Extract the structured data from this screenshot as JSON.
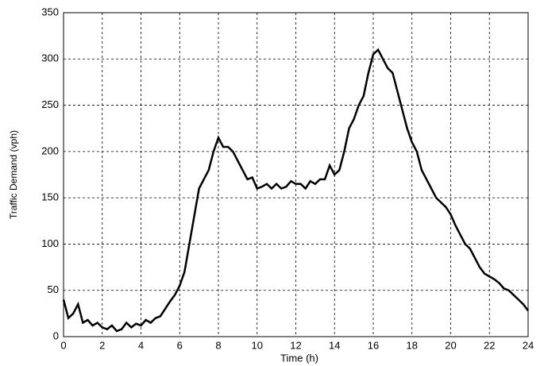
{
  "chart_data": {
    "type": "line",
    "xlabel": "Time (h)",
    "ylabel": "Traffic Demand (vph)",
    "x": [
      0,
      0.25,
      0.5,
      0.75,
      1,
      1.25,
      1.5,
      1.75,
      2,
      2.25,
      2.5,
      2.75,
      3,
      3.25,
      3.5,
      3.75,
      4,
      4.25,
      4.5,
      4.75,
      5,
      5.25,
      5.5,
      5.75,
      6,
      6.25,
      6.5,
      6.75,
      7,
      7.25,
      7.5,
      7.75,
      8,
      8.25,
      8.5,
      8.75,
      9,
      9.25,
      9.5,
      9.75,
      10,
      10.25,
      10.5,
      10.75,
      11,
      11.25,
      11.5,
      11.75,
      12,
      12.25,
      12.5,
      12.75,
      13,
      13.25,
      13.5,
      13.75,
      14,
      14.25,
      14.5,
      14.75,
      15,
      15.25,
      15.5,
      15.75,
      16,
      16.25,
      16.5,
      16.75,
      17,
      17.25,
      17.5,
      17.75,
      18,
      18.25,
      18.5,
      18.75,
      19,
      19.25,
      19.5,
      19.75,
      20,
      20.25,
      20.5,
      20.75,
      21,
      21.25,
      21.5,
      21.75,
      22,
      22.25,
      22.5,
      22.75,
      23,
      23.25,
      23.5,
      23.75,
      24
    ],
    "series": [
      {
        "color": "#000000",
        "values": [
          40,
          20,
          25,
          35,
          15,
          18,
          12,
          15,
          10,
          8,
          12,
          6,
          8,
          15,
          10,
          14,
          12,
          18,
          15,
          20,
          22,
          30,
          38,
          45,
          55,
          70,
          100,
          130,
          160,
          170,
          180,
          200,
          215,
          205,
          205,
          200,
          190,
          180,
          170,
          172,
          160,
          162,
          165,
          160,
          165,
          160,
          162,
          168,
          165,
          165,
          160,
          168,
          165,
          170,
          170,
          185,
          175,
          180,
          200,
          225,
          235,
          250,
          260,
          285,
          305,
          310,
          300,
          290,
          285,
          265,
          245,
          225,
          210,
          200,
          180,
          170,
          160,
          150,
          145,
          140,
          132,
          120,
          110,
          100,
          95,
          85,
          75,
          68,
          65,
          62,
          58,
          52,
          50,
          45,
          40,
          35,
          28
        ]
      }
    ],
    "xlim": [
      0,
      24
    ],
    "xticks": [
      0,
      2,
      4,
      6,
      8,
      10,
      12,
      14,
      16,
      18,
      20,
      22,
      24
    ],
    "ylim": [
      0,
      350
    ],
    "yticks": [
      0,
      50,
      100,
      150,
      200,
      250,
      300,
      350
    ],
    "grid": true
  }
}
